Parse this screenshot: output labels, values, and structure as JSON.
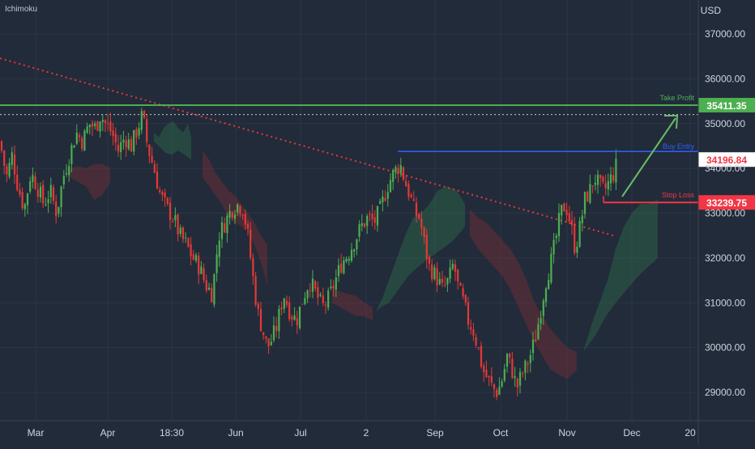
{
  "indicator": "Ichimoku",
  "currency": "USD",
  "colors": {
    "background": "#222b3a",
    "grid": "#2c3546",
    "axis_text": "#d1d4dc",
    "up": "#4caf50",
    "down": "#e53935",
    "take_profit": "#4caf50",
    "buy_entry": "#2962ff",
    "stop_loss": "#f23645",
    "trendline": "#e53935",
    "arrow": "#66bb6a",
    "cloud_green": "#2e7d4f",
    "cloud_red": "#8e2f35"
  },
  "chart_data": {
    "type": "candlestick",
    "y_axis": {
      "range": [
        28200,
        37800
      ],
      "ticks": [
        "29000.00",
        "30000.00",
        "31000.00",
        "32000.00",
        "33000.00",
        "34000.00",
        "35000.00",
        "36000.00",
        "37000.00"
      ]
    },
    "x_axis": {
      "labels": [
        "Mar",
        "Apr",
        "18:30",
        "Jun",
        "Jul",
        "2",
        "Sep",
        "Oct",
        "Nov",
        "Dec",
        "20"
      ]
    },
    "levels": [
      {
        "name": "Take Profit",
        "value": 35411.35,
        "label": "35411.35"
      },
      {
        "name": "Buy Entry",
        "value": 34196.84,
        "label": "34196.84"
      },
      {
        "name": "Stop Loss",
        "value": 33239.75,
        "label": "33239.75"
      }
    ],
    "price_path": [
      [
        0,
        34600
      ],
      [
        8,
        33800
      ],
      [
        15,
        34300
      ],
      [
        22,
        33600
      ],
      [
        30,
        33100
      ],
      [
        38,
        33900
      ],
      [
        46,
        33600
      ],
      [
        54,
        33200
      ],
      [
        62,
        33500
      ],
      [
        70,
        33000
      ],
      [
        78,
        33800
      ],
      [
        86,
        34300
      ],
      [
        94,
        34800
      ],
      [
        102,
        34600
      ],
      [
        110,
        35000
      ],
      [
        118,
        34900
      ],
      [
        124,
        35200
      ],
      [
        130,
        35000
      ],
      [
        138,
        34800
      ],
      [
        146,
        34400
      ],
      [
        154,
        34700
      ],
      [
        162,
        34500
      ],
      [
        170,
        34900
      ],
      [
        176,
        35200
      ],
      [
        182,
        34500
      ],
      [
        190,
        34000
      ],
      [
        198,
        33400
      ],
      [
        206,
        33100
      ],
      [
        214,
        32900
      ],
      [
        222,
        32500
      ],
      [
        230,
        32300
      ],
      [
        238,
        32000
      ],
      [
        246,
        31800
      ],
      [
        254,
        31400
      ],
      [
        262,
        31200
      ],
      [
        270,
        32500
      ],
      [
        278,
        32800
      ],
      [
        286,
        33100
      ],
      [
        294,
        33200
      ],
      [
        300,
        33100
      ],
      [
        306,
        32500
      ],
      [
        312,
        31600
      ],
      [
        318,
        30800
      ],
      [
        324,
        30400
      ],
      [
        330,
        30000
      ],
      [
        336,
        30200
      ],
      [
        342,
        30500
      ],
      [
        350,
        31200
      ],
      [
        358,
        30800
      ],
      [
        366,
        30600
      ],
      [
        374,
        31100
      ],
      [
        382,
        31500
      ],
      [
        390,
        31200
      ],
      [
        398,
        30900
      ],
      [
        406,
        31100
      ],
      [
        414,
        31500
      ],
      [
        422,
        31900
      ],
      [
        430,
        32100
      ],
      [
        438,
        32400
      ],
      [
        446,
        32700
      ],
      [
        454,
        32900
      ],
      [
        462,
        32800
      ],
      [
        470,
        33100
      ],
      [
        478,
        33600
      ],
      [
        486,
        33900
      ],
      [
        494,
        34100
      ],
      [
        500,
        33700
      ],
      [
        506,
        33400
      ],
      [
        512,
        33000
      ],
      [
        518,
        32900
      ],
      [
        524,
        32300
      ],
      [
        530,
        31800
      ],
      [
        538,
        31600
      ],
      [
        546,
        31300
      ],
      [
        554,
        31500
      ],
      [
        560,
        31900
      ],
      [
        566,
        31300
      ],
      [
        572,
        31000
      ],
      [
        578,
        30600
      ],
      [
        584,
        30400
      ],
      [
        590,
        30000
      ],
      [
        596,
        29500
      ],
      [
        602,
        29300
      ],
      [
        608,
        29100
      ],
      [
        614,
        29000
      ],
      [
        620,
        29300
      ],
      [
        626,
        29800
      ],
      [
        632,
        29500
      ],
      [
        638,
        29100
      ],
      [
        644,
        29400
      ],
      [
        650,
        29600
      ],
      [
        656,
        29900
      ],
      [
        662,
        30300
      ],
      [
        668,
        30900
      ],
      [
        674,
        31500
      ],
      [
        680,
        31900
      ],
      [
        686,
        32400
      ],
      [
        692,
        33000
      ],
      [
        698,
        33200
      ],
      [
        704,
        32800
      ],
      [
        710,
        32200
      ],
      [
        716,
        32700
      ],
      [
        722,
        33300
      ],
      [
        728,
        33500
      ],
      [
        734,
        33800
      ],
      [
        740,
        33600
      ],
      [
        746,
        33500
      ],
      [
        752,
        33700
      ],
      [
        758,
        33900
      ],
      [
        763,
        34200
      ]
    ],
    "cloud_green": [
      [
        190,
        34800
      ],
      [
        196,
        34700
      ],
      [
        202,
        34900
      ],
      [
        208,
        35000
      ],
      [
        214,
        35050
      ],
      [
        220,
        34900
      ],
      [
        226,
        34800
      ],
      [
        232,
        35000
      ],
      [
        236,
        34700
      ],
      [
        236,
        34200
      ],
      [
        228,
        34300
      ],
      [
        220,
        34400
      ],
      [
        212,
        34300
      ],
      [
        204,
        34350
      ],
      [
        196,
        34500
      ],
      [
        190,
        34600
      ],
      [
        464,
        30800
      ],
      [
        472,
        31100
      ],
      [
        480,
        31500
      ],
      [
        490,
        32000
      ],
      [
        500,
        32500
      ],
      [
        510,
        32900
      ],
      [
        520,
        33000
      ],
      [
        530,
        33200
      ],
      [
        540,
        33500
      ],
      [
        552,
        33600
      ],
      [
        564,
        33500
      ],
      [
        574,
        33200
      ],
      [
        574,
        32700
      ],
      [
        560,
        32400
      ],
      [
        546,
        32200
      ],
      [
        530,
        32000
      ],
      [
        516,
        31800
      ],
      [
        504,
        31600
      ],
      [
        492,
        31300
      ],
      [
        480,
        31000
      ],
      [
        470,
        30900
      ],
      [
        720,
        29900
      ],
      [
        730,
        30500
      ],
      [
        740,
        31000
      ],
      [
        750,
        31500
      ],
      [
        760,
        32200
      ],
      [
        770,
        32700
      ],
      [
        780,
        33000
      ],
      [
        790,
        33200
      ],
      [
        800,
        33200
      ],
      [
        812,
        33300
      ],
      [
        812,
        32000
      ],
      [
        800,
        31800
      ],
      [
        788,
        31600
      ],
      [
        774,
        31300
      ],
      [
        760,
        31000
      ],
      [
        748,
        30700
      ],
      [
        736,
        30300
      ],
      [
        724,
        30000
      ]
    ],
    "cloud_red": [
      [
        86,
        34000
      ],
      [
        96,
        34050
      ],
      [
        106,
        34000
      ],
      [
        116,
        34100
      ],
      [
        126,
        34100
      ],
      [
        136,
        34000
      ],
      [
        136,
        33700
      ],
      [
        126,
        33400
      ],
      [
        116,
        33300
      ],
      [
        106,
        33600
      ],
      [
        96,
        33700
      ],
      [
        86,
        33800
      ],
      [
        250,
        34400
      ],
      [
        258,
        34200
      ],
      [
        266,
        33900
      ],
      [
        274,
        33700
      ],
      [
        282,
        33500
      ],
      [
        290,
        33400
      ],
      [
        298,
        33200
      ],
      [
        306,
        33000
      ],
      [
        314,
        32800
      ],
      [
        322,
        32500
      ],
      [
        330,
        32300
      ],
      [
        330,
        31400
      ],
      [
        322,
        31900
      ],
      [
        314,
        32300
      ],
      [
        306,
        32600
      ],
      [
        298,
        32700
      ],
      [
        290,
        32800
      ],
      [
        282,
        32900
      ],
      [
        274,
        33200
      ],
      [
        266,
        33400
      ],
      [
        258,
        33600
      ],
      [
        250,
        33800
      ],
      [
        410,
        31300
      ],
      [
        420,
        31250
      ],
      [
        430,
        31200
      ],
      [
        440,
        31150
      ],
      [
        450,
        31000
      ],
      [
        460,
        30900
      ],
      [
        460,
        30600
      ],
      [
        450,
        30700
      ],
      [
        440,
        30700
      ],
      [
        430,
        30800
      ],
      [
        420,
        30900
      ],
      [
        410,
        31000
      ],
      [
        580,
        33100
      ],
      [
        590,
        32900
      ],
      [
        600,
        32800
      ],
      [
        610,
        32600
      ],
      [
        620,
        32400
      ],
      [
        630,
        32200
      ],
      [
        640,
        31900
      ],
      [
        650,
        31500
      ],
      [
        660,
        31000
      ],
      [
        670,
        30700
      ],
      [
        680,
        30400
      ],
      [
        690,
        30200
      ],
      [
        700,
        30000
      ],
      [
        712,
        29900
      ],
      [
        712,
        29500
      ],
      [
        700,
        29300
      ],
      [
        690,
        29400
      ],
      [
        680,
        29500
      ],
      [
        670,
        29800
      ],
      [
        660,
        30100
      ],
      [
        650,
        30500
      ],
      [
        640,
        30900
      ],
      [
        630,
        31300
      ],
      [
        620,
        31600
      ],
      [
        610,
        31800
      ],
      [
        600,
        32000
      ],
      [
        590,
        32200
      ],
      [
        580,
        32500
      ]
    ]
  }
}
